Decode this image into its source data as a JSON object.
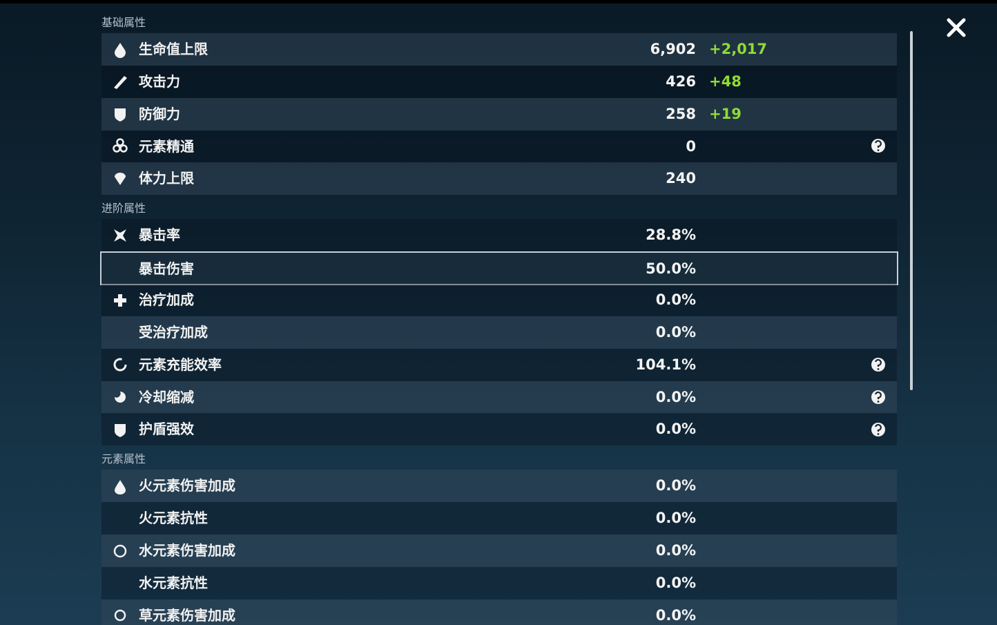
{
  "sections": [
    {
      "title": "基础属性",
      "rows": [
        {
          "label": "生命值上限",
          "value": "6,902",
          "bonus": "+2,017"
        },
        {
          "label": "攻击力",
          "value": "426",
          "bonus": "+48"
        },
        {
          "label": "防御力",
          "value": "258",
          "bonus": "+19"
        },
        {
          "label": "元素精通",
          "value": "0"
        },
        {
          "label": "体力上限",
          "value": "240"
        }
      ]
    },
    {
      "title": "进阶属性",
      "rows": [
        {
          "label": "暴击率",
          "value": "28.8%"
        },
        {
          "label": "暴击伤害",
          "value": "50.0%"
        },
        {
          "label": "治疗加成",
          "value": "0.0%"
        },
        {
          "label": "受治疗加成",
          "value": "0.0%"
        },
        {
          "label": "元素充能效率",
          "value": "104.1%"
        },
        {
          "label": "冷却缩减",
          "value": "0.0%"
        },
        {
          "label": "护盾强效",
          "value": "0.0%"
        }
      ]
    },
    {
      "title": "元素属性",
      "rows": [
        {
          "label": "火元素伤害加成",
          "value": "0.0%"
        },
        {
          "label": "火元素抗性",
          "value": "0.0%"
        },
        {
          "label": "水元素伤害加成",
          "value": "0.0%"
        },
        {
          "label": "水元素抗性",
          "value": "0.0%"
        },
        {
          "label": "草元素伤害加成",
          "value": "0.0%"
        }
      ]
    }
  ]
}
